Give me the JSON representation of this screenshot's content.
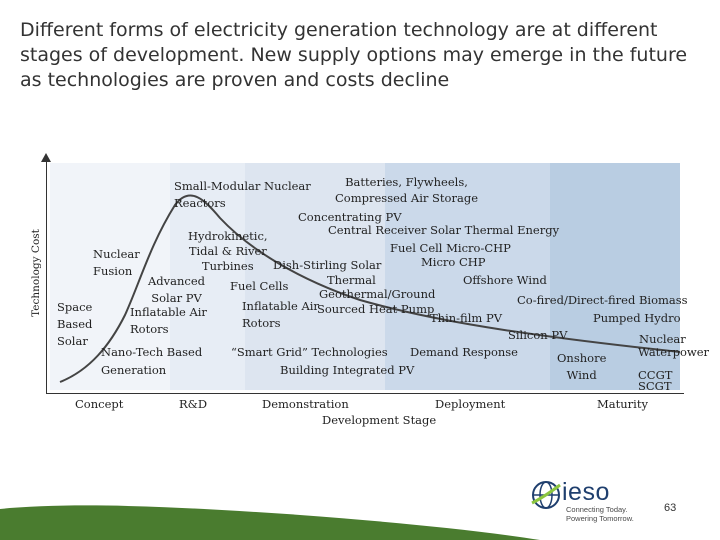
{
  "title": "Different forms of electricity generation technology are at different stages of development. New supply options may emerge in the future as technologies are proven and costs decline",
  "y_axis_label": "Technology Cost",
  "stages": [
    "Concept",
    "R&D",
    "Demonstration",
    "Deployment",
    "Maturity"
  ],
  "x_axis_caption": "Development Stage",
  "technologies": {
    "small_modular_nuclear": [
      "Small-Modular Nuclear",
      "Reactors"
    ],
    "batteries": [
      "Batteries, Flywheels,",
      "Compressed Air Storage"
    ],
    "concentrating_pv": "Concentrating PV",
    "central_receiver": "Central Receiver Solar Thermal Energy",
    "hydrokinetic": [
      "Hydrokinetic,",
      "Tidal & River",
      "Turbines"
    ],
    "fuel_cell_chp": "Fuel Cell Micro-CHP",
    "micro_chp": "Micro CHP",
    "nuclear_fusion": [
      "Nuclear",
      "Fusion"
    ],
    "dish_stirling": "Dish-Stirling Solar",
    "solar_thermal": "Thermal",
    "offshore_wind": "Offshore Wind",
    "advanced_solar_pv": [
      "Advanced",
      "Solar PV"
    ],
    "fuel_cells": "Fuel Cells",
    "geothermal": "Geothermal/Ground",
    "co_fired_biomass": "Co-fired/Direct-fired Biomass",
    "space_solar": [
      "Space",
      "Based",
      "Solar"
    ],
    "inflatable_rotors_1": [
      "Inflatable Air",
      "Rotors"
    ],
    "inflatable_rotors_2": [
      "Inflatable Air",
      "Rotors"
    ],
    "sourced_heat_pump": "Sourced Heat Pump",
    "thin_film_pv": "Thin-film PV",
    "pumped_hydro": "Pumped Hydro",
    "silicon_pv": "Silicon PV",
    "nuclear": "Nuclear",
    "waterpower": "Waterpower",
    "nano_tech": [
      "Nano-Tech Based",
      "Generation"
    ],
    "smart_grid": "“Smart Grid” Technologies",
    "demand_response": "Demand Response",
    "onshore_wind": [
      "Onshore",
      "Wind"
    ],
    "building_integrated_pv": "Building Integrated PV",
    "ccgt": "CCGT",
    "scgt": "SCGT"
  },
  "colors": {
    "band_concept": "#f1f4f9",
    "band_rd": "#e7edf5",
    "band_demo": "#dde5f0",
    "band_deploy": "#cbd9ea",
    "band_maturity": "#b9cde2",
    "curve": "#444444",
    "footer_green": "#4a7c2f",
    "brand_blue": "#1f3f6e"
  },
  "logo": {
    "name": "ieso",
    "tagline": [
      "Connecting Today.",
      "Powering Tomorrow."
    ]
  },
  "page_number": "63"
}
